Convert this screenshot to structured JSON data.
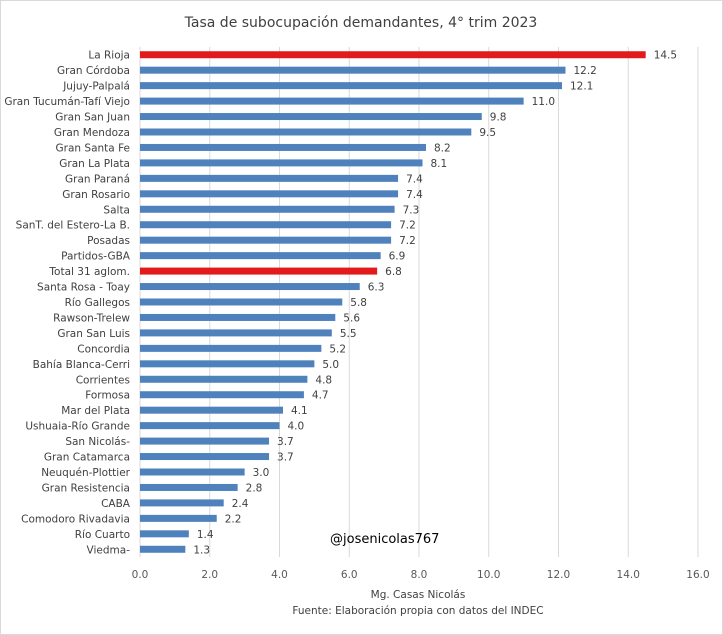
{
  "chart_data": {
    "type": "bar",
    "orientation": "horizontal",
    "title": "Tasa de subocupación demandantes, 4° trim 2023",
    "categories": [
      "La Rioja",
      "Gran Córdoba",
      "Jujuy-Palpalá",
      "Gran Tucumán-Tafí Viejo",
      "Gran San Juan",
      "Gran Mendoza",
      "Gran Santa Fe",
      "Gran La Plata",
      "Gran Paraná",
      "Gran Rosario",
      "Salta",
      "SanT. del Estero-La B.",
      "Posadas",
      "Partidos-GBA",
      "Total 31 aglom.",
      "Santa Rosa - Toay",
      "Río Gallegos",
      "Rawson-Trelew",
      "Gran San Luis",
      "Concordia",
      "Bahía Blanca-Cerri",
      "Corrientes",
      "Formosa",
      "Mar del Plata",
      "Ushuaia-Río Grande",
      "San Nicolás-",
      "Gran Catamarca",
      "Neuquén-Plottier",
      "Gran Resistencia",
      "CABA",
      "Comodoro Rivadavia",
      "Río Cuarto",
      "Viedma-"
    ],
    "values": [
      14.5,
      12.2,
      12.1,
      11.0,
      9.8,
      9.5,
      8.2,
      8.1,
      7.4,
      7.4,
      7.3,
      7.2,
      7.2,
      6.9,
      6.8,
      6.3,
      5.8,
      5.6,
      5.5,
      5.2,
      5.0,
      4.8,
      4.7,
      4.1,
      4.0,
      3.7,
      3.7,
      3.0,
      2.8,
      2.4,
      2.2,
      1.4,
      1.3
    ],
    "value_labels": [
      "14.5",
      "12.2",
      "12.1",
      "11.0",
      "9.8",
      "9.5",
      "8.2",
      "8.1",
      "7.4",
      "7.4",
      "7.3",
      "7.2",
      "7.2",
      "6.9",
      "6.8",
      "6.3",
      "5.8",
      "5.6",
      "5.5",
      "5.2",
      "5.0",
      "4.8",
      "4.7",
      "4.1",
      "4.0",
      "3.7",
      "3.7",
      "3.0",
      "2.8",
      "2.4",
      "2.2",
      "1.4",
      "1.3"
    ],
    "highlighted": [
      "La Rioja",
      "Total 31 aglom."
    ],
    "xlim": [
      0,
      16
    ],
    "x_ticks": [
      "0.0",
      "2.0",
      "4.0",
      "6.0",
      "8.0",
      "10.0",
      "12.0",
      "14.0",
      "16.0"
    ],
    "xlabel": "Mg. Casas Nicolás",
    "source": "Fuente:  Elaboración propia con datos del INDEC",
    "watermark": "@josenicolas767",
    "grid": true,
    "colors": {
      "bar": "#4f81bd",
      "highlight": "#e31a1c",
      "grid": "#d9d9d9"
    }
  }
}
